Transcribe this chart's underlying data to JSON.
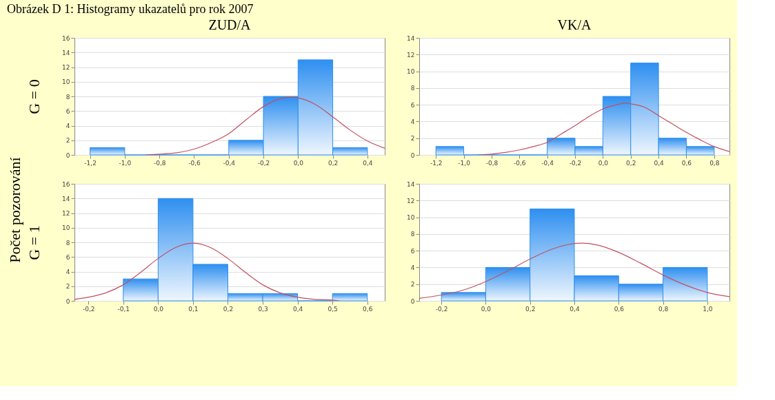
{
  "chart_data": [
    {
      "type": "histogram",
      "title": "ZUD/A",
      "ylabel": "G = 0",
      "annotations": [
        "Obrázek D 1: Histogramy ukazatelů pro rok 2007",
        "Počet pozorování"
      ],
      "grid": "y",
      "bins": [
        -1.2,
        -1.0,
        -0.8,
        -0.6,
        -0.4,
        -0.2,
        0.0,
        0.2,
        0.4
      ],
      "values": [
        1,
        0,
        0,
        0,
        2,
        8,
        13,
        1
      ],
      "color": "#2e8ff0",
      "series": [
        {
          "type": "line",
          "color": "#c0505e",
          "x": [
            -0.88,
            -0.8,
            -0.7,
            -0.6,
            -0.5,
            -0.4,
            -0.3,
            -0.2,
            -0.1,
            -0.04,
            0.0,
            0.1,
            0.2,
            0.3,
            0.4,
            0.5
          ],
          "values": [
            0.0,
            0.1,
            0.3,
            0.8,
            1.7,
            2.9,
            4.8,
            6.6,
            7.7,
            7.9,
            7.8,
            6.9,
            5.2,
            3.4,
            1.9,
            0.9
          ]
        }
      ],
      "xlim": [
        -1.29,
        0.5
      ],
      "xticks": [
        {
          "value": -1.2,
          "label": "-1,2"
        },
        {
          "value": -1.0,
          "label": "-1,0"
        },
        {
          "value": -0.8,
          "label": "-0,8"
        },
        {
          "value": -0.6,
          "label": "-0,6"
        },
        {
          "value": -0.4,
          "label": "-0,4"
        },
        {
          "value": -0.2,
          "label": "-0,2"
        },
        {
          "value": 0.0,
          "label": "0,0"
        },
        {
          "value": 0.2,
          "label": "0,2"
        },
        {
          "value": 0.4,
          "label": "0,4"
        }
      ],
      "ylim": [
        0,
        16
      ],
      "yticks": [
        0,
        2,
        4,
        6,
        8,
        10,
        12,
        14,
        16
      ]
    },
    {
      "type": "histogram",
      "title": "VK/A",
      "grid": "y",
      "bins": [
        -1.2,
        -1.0,
        -0.8,
        -0.6,
        -0.4,
        -0.2,
        0.0,
        0.2,
        0.4,
        0.6,
        0.8
      ],
      "values": [
        1,
        0,
        0,
        0,
        2,
        1,
        7,
        11,
        2,
        1
      ],
      "color": "#2e8ff0",
      "series": [
        {
          "type": "line",
          "color": "#c0505e",
          "x": [
            -0.9,
            -0.8,
            -0.7,
            -0.6,
            -0.5,
            -0.4,
            -0.3,
            -0.2,
            -0.1,
            0.0,
            0.1,
            0.16,
            0.2,
            0.3,
            0.4,
            0.5,
            0.6,
            0.7,
            0.8,
            0.91
          ],
          "values": [
            0.0,
            0.1,
            0.3,
            0.6,
            1.0,
            1.5,
            2.5,
            3.5,
            4.6,
            5.5,
            6.0,
            6.2,
            6.1,
            5.7,
            4.7,
            3.7,
            2.7,
            1.8,
            1.0,
            0.4
          ]
        }
      ],
      "xlim": [
        -1.32,
        0.91
      ],
      "xticks": [
        {
          "value": -1.2,
          "label": "-1,2"
        },
        {
          "value": -1.0,
          "label": "-1,0"
        },
        {
          "value": -0.8,
          "label": "-0,8"
        },
        {
          "value": -0.6,
          "label": "-0,6"
        },
        {
          "value": -0.4,
          "label": "-0,4"
        },
        {
          "value": -0.2,
          "label": "-0,2"
        },
        {
          "value": 0.0,
          "label": "0,0"
        },
        {
          "value": 0.2,
          "label": "0,2"
        },
        {
          "value": 0.4,
          "label": "0,4"
        },
        {
          "value": 0.6,
          "label": "0,6"
        },
        {
          "value": 0.8,
          "label": "0,8"
        }
      ],
      "ylim": [
        0,
        14
      ],
      "yticks": [
        0,
        2,
        4,
        6,
        8,
        10,
        12,
        14
      ]
    },
    {
      "type": "histogram",
      "ylabel": "G = 1",
      "grid": "y",
      "bins": [
        -0.1,
        0.0,
        0.1,
        0.2,
        0.3,
        0.4,
        0.5,
        0.6
      ],
      "values": [
        3,
        14,
        5,
        1,
        1,
        0,
        1
      ],
      "color": "#2e8ff0",
      "series": [
        {
          "type": "line",
          "color": "#c0505e",
          "x": [
            -0.24,
            -0.2,
            -0.15,
            -0.1,
            -0.05,
            0.0,
            0.05,
            0.1,
            0.15,
            0.2,
            0.25,
            0.3,
            0.35,
            0.4,
            0.45,
            0.5,
            0.52
          ],
          "values": [
            0.2,
            0.5,
            1.1,
            2.2,
            3.9,
            5.8,
            7.3,
            7.9,
            7.3,
            5.8,
            3.9,
            2.2,
            1.1,
            0.5,
            0.2,
            0.1,
            0.0
          ]
        }
      ],
      "xlim": [
        -0.24,
        0.65
      ],
      "xticks": [
        {
          "value": -0.2,
          "label": "-0,2"
        },
        {
          "value": -0.1,
          "label": "-0,1"
        },
        {
          "value": 0.0,
          "label": "0,0"
        },
        {
          "value": 0.1,
          "label": "0,1"
        },
        {
          "value": 0.2,
          "label": "0,2"
        },
        {
          "value": 0.3,
          "label": "0,3"
        },
        {
          "value": 0.4,
          "label": "0,4"
        },
        {
          "value": 0.5,
          "label": "0,5"
        },
        {
          "value": 0.6,
          "label": "0,6"
        }
      ],
      "ylim": [
        0,
        16
      ],
      "yticks": [
        0,
        2,
        4,
        6,
        8,
        10,
        12,
        14,
        16
      ]
    },
    {
      "type": "histogram",
      "grid": "y",
      "bins": [
        -0.2,
        0.0,
        0.2,
        0.4,
        0.6,
        0.8,
        1.0
      ],
      "values": [
        1,
        4,
        11,
        3,
        2,
        4
      ],
      "color": "#2e8ff0",
      "series": [
        {
          "type": "line",
          "color": "#c0505e",
          "x": [
            -0.3,
            -0.2,
            -0.1,
            0.0,
            0.1,
            0.2,
            0.3,
            0.43,
            0.5,
            0.6,
            0.7,
            0.8,
            0.9,
            1.0,
            1.1
          ],
          "values": [
            0.3,
            0.7,
            1.3,
            2.3,
            3.6,
            5.0,
            6.2,
            6.9,
            6.7,
            5.8,
            4.5,
            3.1,
            1.9,
            1.0,
            0.5
          ]
        }
      ],
      "xlim": [
        -0.3,
        1.1
      ],
      "xticks": [
        {
          "value": -0.2,
          "label": "-0,2"
        },
        {
          "value": 0.0,
          "label": "0,0"
        },
        {
          "value": 0.2,
          "label": "0,2"
        },
        {
          "value": 0.4,
          "label": "0,4"
        },
        {
          "value": 0.6,
          "label": "0,6"
        },
        {
          "value": 0.8,
          "label": "0,8"
        },
        {
          "value": 1.0,
          "label": "1,0"
        }
      ],
      "ylim": [
        0,
        14
      ],
      "yticks": [
        0,
        2,
        4,
        6,
        8,
        10,
        12,
        14
      ]
    }
  ]
}
